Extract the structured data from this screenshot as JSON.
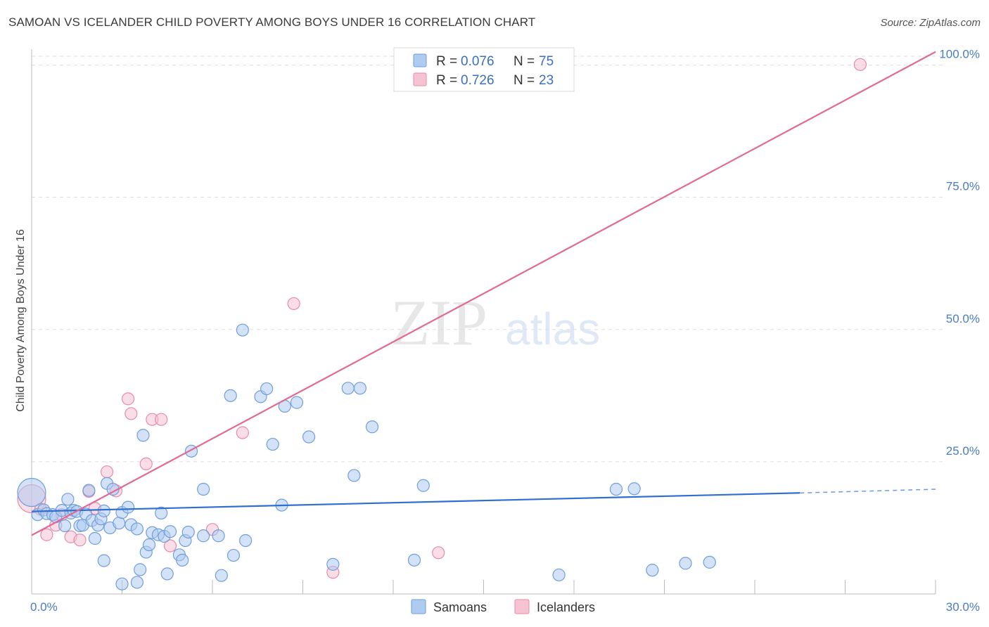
{
  "title": "SAMOAN VS ICELANDER CHILD POVERTY AMONG BOYS UNDER 16 CORRELATION CHART",
  "source": "Source: ZipAtlas.com",
  "watermark": {
    "zip": "ZIP",
    "atlas": "atlas"
  },
  "colors": {
    "samoan_fill": "#aecbf0",
    "samoan_stroke": "#6f9fdc",
    "samoan_line": "#2f6fd0",
    "icelander_fill": "#f6c3d3",
    "icelander_stroke": "#e88aaa",
    "icelander_line": "#e06a95",
    "grid": "#dddddd",
    "tick_text": "#4a7cc7"
  },
  "legend": {
    "r_label": "R =",
    "n_label": "N =",
    "rows": [
      {
        "series": "Samoans",
        "r": "0.076",
        "n": "75"
      },
      {
        "series": "Icelanders",
        "r": "0.726",
        "n": "23"
      }
    ]
  },
  "bottom_legend": [
    "Samoans",
    "Icelanders"
  ],
  "chart_data": {
    "type": "scatter",
    "title": "SAMOAN VS ICELANDER CHILD POVERTY AMONG BOYS UNDER 16 CORRELATION CHART",
    "xlabel": "",
    "ylabel": "Child Poverty Among Boys Under 16",
    "xlim": [
      0,
      30
    ],
    "ylim": [
      0,
      103
    ],
    "x_ticks": [
      "0.0%",
      "30.0%"
    ],
    "y_ticks": [
      {
        "value": 25,
        "label": "25.0%"
      },
      {
        "value": 50,
        "label": "50.0%"
      },
      {
        "value": 75,
        "label": "75.0%"
      },
      {
        "value": 100,
        "label": "100.0%"
      }
    ],
    "grid": true,
    "legend_position": "top-center",
    "series": [
      {
        "name": "Samoans",
        "r": 0.076,
        "n": 75,
        "trend": {
          "x0": 0,
          "y0": 15.6,
          "x1": 25.5,
          "y1": 19.1,
          "dash_to_x": 30,
          "dash_to_y": 19.8
        },
        "points": [
          {
            "x": 0.0,
            "y": 19.2,
            "big": true
          },
          {
            "x": 0.2,
            "y": 15.0
          },
          {
            "x": 0.4,
            "y": 15.9
          },
          {
            "x": 0.5,
            "y": 15.2
          },
          {
            "x": 0.7,
            "y": 15.0
          },
          {
            "x": 0.8,
            "y": 14.6
          },
          {
            "x": 1.0,
            "y": 15.8
          },
          {
            "x": 1.1,
            "y": 12.9
          },
          {
            "x": 1.2,
            "y": 17.9
          },
          {
            "x": 1.3,
            "y": 15.3
          },
          {
            "x": 1.4,
            "y": 15.8
          },
          {
            "x": 1.5,
            "y": 15.6
          },
          {
            "x": 1.6,
            "y": 12.9
          },
          {
            "x": 1.7,
            "y": 13.0
          },
          {
            "x": 1.8,
            "y": 15.1
          },
          {
            "x": 1.9,
            "y": 19.6
          },
          {
            "x": 2.0,
            "y": 13.9
          },
          {
            "x": 2.1,
            "y": 10.5
          },
          {
            "x": 2.2,
            "y": 13.0
          },
          {
            "x": 2.3,
            "y": 14.2
          },
          {
            "x": 2.4,
            "y": 15.7
          },
          {
            "x": 2.4,
            "y": 6.3
          },
          {
            "x": 2.5,
            "y": 20.9
          },
          {
            "x": 2.6,
            "y": 12.5
          },
          {
            "x": 2.7,
            "y": 19.8
          },
          {
            "x": 2.9,
            "y": 13.4
          },
          {
            "x": 3.0,
            "y": 15.4
          },
          {
            "x": 3.0,
            "y": 1.9
          },
          {
            "x": 3.2,
            "y": 16.4
          },
          {
            "x": 3.3,
            "y": 13.1
          },
          {
            "x": 3.5,
            "y": 12.3
          },
          {
            "x": 3.5,
            "y": 2.2
          },
          {
            "x": 3.6,
            "y": 4.6
          },
          {
            "x": 3.7,
            "y": 30.0
          },
          {
            "x": 3.8,
            "y": 7.9
          },
          {
            "x": 3.9,
            "y": 9.3
          },
          {
            "x": 4.0,
            "y": 11.6
          },
          {
            "x": 4.2,
            "y": 11.2
          },
          {
            "x": 4.3,
            "y": 15.3
          },
          {
            "x": 4.4,
            "y": 10.9
          },
          {
            "x": 4.5,
            "y": 3.8
          },
          {
            "x": 4.6,
            "y": 11.8
          },
          {
            "x": 4.9,
            "y": 7.4
          },
          {
            "x": 5.0,
            "y": 6.4
          },
          {
            "x": 5.1,
            "y": 10.1
          },
          {
            "x": 5.2,
            "y": 11.7
          },
          {
            "x": 5.3,
            "y": 27.0
          },
          {
            "x": 5.7,
            "y": 11.0
          },
          {
            "x": 5.7,
            "y": 19.8
          },
          {
            "x": 6.2,
            "y": 11.0
          },
          {
            "x": 6.3,
            "y": 3.5
          },
          {
            "x": 6.6,
            "y": 37.5
          },
          {
            "x": 6.7,
            "y": 7.3
          },
          {
            "x": 7.0,
            "y": 49.9
          },
          {
            "x": 7.1,
            "y": 10.1
          },
          {
            "x": 7.6,
            "y": 37.3
          },
          {
            "x": 7.8,
            "y": 38.8
          },
          {
            "x": 8.0,
            "y": 28.3
          },
          {
            "x": 8.3,
            "y": 16.8
          },
          {
            "x": 8.4,
            "y": 35.5
          },
          {
            "x": 8.8,
            "y": 36.2
          },
          {
            "x": 9.2,
            "y": 29.7
          },
          {
            "x": 10.0,
            "y": 5.6
          },
          {
            "x": 10.5,
            "y": 38.9
          },
          {
            "x": 10.7,
            "y": 22.4
          },
          {
            "x": 10.9,
            "y": 38.9
          },
          {
            "x": 11.3,
            "y": 31.6
          },
          {
            "x": 12.7,
            "y": 6.4
          },
          {
            "x": 13.0,
            "y": 20.5
          },
          {
            "x": 17.5,
            "y": 3.6
          },
          {
            "x": 19.4,
            "y": 19.8
          },
          {
            "x": 20.0,
            "y": 19.9
          },
          {
            "x": 20.6,
            "y": 4.5
          },
          {
            "x": 21.7,
            "y": 5.8
          },
          {
            "x": 22.5,
            "y": 6.0
          }
        ]
      },
      {
        "name": "Icelanders",
        "r": 0.726,
        "n": 23,
        "trend": {
          "x0": 0,
          "y0": 11.1,
          "x1": 30,
          "y1": 102.5
        },
        "points": [
          {
            "x": 0.0,
            "y": 18.0,
            "big": true
          },
          {
            "x": 0.3,
            "y": 16.0
          },
          {
            "x": 0.5,
            "y": 11.2
          },
          {
            "x": 0.8,
            "y": 13.0
          },
          {
            "x": 1.0,
            "y": 15.0
          },
          {
            "x": 1.3,
            "y": 10.8
          },
          {
            "x": 1.6,
            "y": 10.2
          },
          {
            "x": 1.9,
            "y": 19.4
          },
          {
            "x": 2.1,
            "y": 16.2
          },
          {
            "x": 2.5,
            "y": 23.1
          },
          {
            "x": 2.8,
            "y": 19.5
          },
          {
            "x": 3.2,
            "y": 36.9
          },
          {
            "x": 3.3,
            "y": 34.1
          },
          {
            "x": 3.8,
            "y": 24.6
          },
          {
            "x": 4.0,
            "y": 33.0
          },
          {
            "x": 4.3,
            "y": 33.0
          },
          {
            "x": 4.6,
            "y": 9.1
          },
          {
            "x": 6.0,
            "y": 12.2
          },
          {
            "x": 7.0,
            "y": 30.5
          },
          {
            "x": 8.7,
            "y": 54.9
          },
          {
            "x": 10.0,
            "y": 4.1
          },
          {
            "x": 13.5,
            "y": 7.8
          },
          {
            "x": 27.5,
            "y": 100.1
          }
        ]
      }
    ]
  }
}
